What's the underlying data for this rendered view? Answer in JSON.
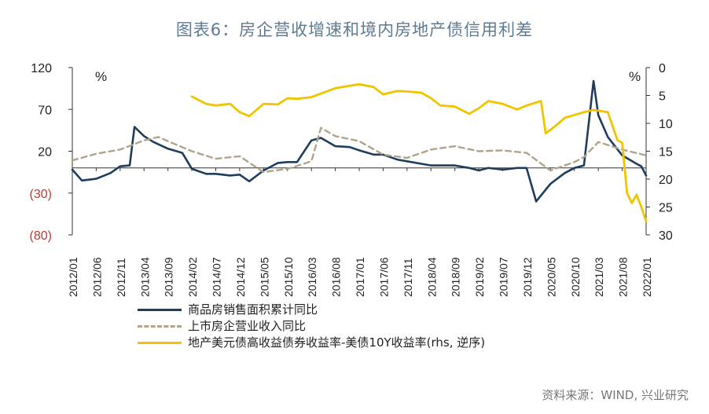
{
  "title": "图表6：房企营收增速和境内房地产债信用利差",
  "source": "资料来源：WIND, 兴业研究",
  "colors": {
    "sales": "#1f3d5c",
    "revenue": "#b0a48a",
    "spread": "#f2c400",
    "negative_tick": "#c0392b"
  },
  "chart_data": {
    "type": "line",
    "x_ticks": [
      "2012/01",
      "2012/06",
      "2012/11",
      "2013/04",
      "2013/09",
      "2014/02",
      "2014/07",
      "2014/12",
      "2015/05",
      "2015/10",
      "2016/03",
      "2016/08",
      "2017/01",
      "2017/06",
      "2017/11",
      "2018/04",
      "2018/09",
      "2019/02",
      "2019/07",
      "2019/12",
      "2020/05",
      "2020/10",
      "2021/03",
      "2021/08",
      "2022/01"
    ],
    "y_left": {
      "unit": "%",
      "ylim": [
        -80,
        120
      ],
      "ticks": [
        120,
        70,
        20,
        -30,
        -80
      ],
      "tick_labels": [
        "120",
        "70",
        "20",
        "(30)",
        "(80)"
      ]
    },
    "y_right": {
      "unit": "%",
      "ylim": [
        0,
        30
      ],
      "reversed": true,
      "ticks": [
        0,
        5,
        10,
        15,
        20,
        25,
        30
      ],
      "tick_labels": [
        "0",
        "5",
        "10",
        "15",
        "20",
        "25",
        "30"
      ]
    },
    "grid": false,
    "legend_position": "bottom-left",
    "series": [
      {
        "name": "商品房销售面积累计同比",
        "axis": "left",
        "style": "solid",
        "points": [
          [
            "2012/01",
            -2
          ],
          [
            "2012/03",
            -15
          ],
          [
            "2012/06",
            -13
          ],
          [
            "2012/09",
            -6
          ],
          [
            "2012/11",
            2
          ],
          [
            "2013/01",
            3
          ],
          [
            "2013/02",
            49
          ],
          [
            "2013/04",
            38
          ],
          [
            "2013/06",
            31
          ],
          [
            "2013/09",
            23
          ],
          [
            "2013/12",
            18
          ],
          [
            "2014/02",
            -1
          ],
          [
            "2014/05",
            -7
          ],
          [
            "2014/07",
            -7
          ],
          [
            "2014/10",
            -9
          ],
          [
            "2014/12",
            -8
          ],
          [
            "2015/02",
            -16
          ],
          [
            "2015/05",
            -3
          ],
          [
            "2015/08",
            6
          ],
          [
            "2015/10",
            7
          ],
          [
            "2015/12",
            7
          ],
          [
            "2016/03",
            33
          ],
          [
            "2016/05",
            36
          ],
          [
            "2016/08",
            26
          ],
          [
            "2016/11",
            25
          ],
          [
            "2017/01",
            21
          ],
          [
            "2017/04",
            16
          ],
          [
            "2017/06",
            16
          ],
          [
            "2017/09",
            10
          ],
          [
            "2017/11",
            8
          ],
          [
            "2018/02",
            5
          ],
          [
            "2018/04",
            3
          ],
          [
            "2018/06",
            3
          ],
          [
            "2018/09",
            3
          ],
          [
            "2018/12",
            0
          ],
          [
            "2019/02",
            -3
          ],
          [
            "2019/04",
            0
          ],
          [
            "2019/07",
            -2
          ],
          [
            "2019/10",
            0
          ],
          [
            "2019/12",
            0
          ],
          [
            "2020/02",
            -40
          ],
          [
            "2020/05",
            -19
          ],
          [
            "2020/08",
            -6
          ],
          [
            "2020/10",
            0
          ],
          [
            "2020/12",
            3
          ],
          [
            "2021/02",
            104
          ],
          [
            "2021/03",
            63
          ],
          [
            "2021/05",
            37
          ],
          [
            "2021/08",
            15
          ],
          [
            "2021/11",
            5
          ],
          [
            "2021/12",
            2
          ],
          [
            "2022/01",
            -9
          ]
        ]
      },
      {
        "name": "上市房企营业收入同比",
        "axis": "left",
        "style": "dashed",
        "points": [
          [
            "2012/01",
            9
          ],
          [
            "2012/06",
            17
          ],
          [
            "2012/11",
            22
          ],
          [
            "2013/04",
            33
          ],
          [
            "2013/07",
            37
          ],
          [
            "2013/09",
            32
          ],
          [
            "2014/02",
            20
          ],
          [
            "2014/07",
            11
          ],
          [
            "2014/12",
            14
          ],
          [
            "2015/05",
            -5
          ],
          [
            "2015/10",
            -1
          ],
          [
            "2016/03",
            8
          ],
          [
            "2016/05",
            48
          ],
          [
            "2016/08",
            38
          ],
          [
            "2017/01",
            32
          ],
          [
            "2017/06",
            16
          ],
          [
            "2017/11",
            12
          ],
          [
            "2018/04",
            22
          ],
          [
            "2018/09",
            26
          ],
          [
            "2019/02",
            20
          ],
          [
            "2019/07",
            21
          ],
          [
            "2019/12",
            18
          ],
          [
            "2020/05",
            -3
          ],
          [
            "2020/10",
            7
          ],
          [
            "2020/12",
            13
          ],
          [
            "2021/03",
            31
          ],
          [
            "2021/08",
            22
          ],
          [
            "2022/01",
            15
          ]
        ]
      },
      {
        "name": "地产美元债高收益债券收益率-美债10Y收益率(rhs, 逆序)",
        "axis": "right",
        "style": "solid",
        "points": [
          [
            "2014/02",
            5.2
          ],
          [
            "2014/05",
            6.5
          ],
          [
            "2014/07",
            6.8
          ],
          [
            "2014/10",
            6.5
          ],
          [
            "2014/12",
            8.0
          ],
          [
            "2015/02",
            8.7
          ],
          [
            "2015/05",
            6.5
          ],
          [
            "2015/08",
            6.6
          ],
          [
            "2015/10",
            5.5
          ],
          [
            "2015/12",
            5.6
          ],
          [
            "2016/03",
            5.3
          ],
          [
            "2016/08",
            3.7
          ],
          [
            "2017/01",
            3.0
          ],
          [
            "2017/04",
            3.5
          ],
          [
            "2017/06",
            4.8
          ],
          [
            "2017/09",
            4.2
          ],
          [
            "2017/11",
            4.3
          ],
          [
            "2018/02",
            4.5
          ],
          [
            "2018/04",
            5.5
          ],
          [
            "2018/06",
            6.8
          ],
          [
            "2018/09",
            7.0
          ],
          [
            "2018/12",
            8.3
          ],
          [
            "2019/02",
            7.3
          ],
          [
            "2019/04",
            6.0
          ],
          [
            "2019/07",
            6.5
          ],
          [
            "2019/10",
            7.5
          ],
          [
            "2019/12",
            6.8
          ],
          [
            "2020/03",
            6.0
          ],
          [
            "2020/04",
            11.8
          ],
          [
            "2020/06",
            10.5
          ],
          [
            "2020/08",
            9.0
          ],
          [
            "2020/10",
            8.5
          ],
          [
            "2020/12",
            8.0
          ],
          [
            "2021/02",
            7.6
          ],
          [
            "2021/05",
            8.0
          ],
          [
            "2021/07",
            13.0
          ],
          [
            "2021/08",
            13.5
          ],
          [
            "2021/09",
            22.5
          ],
          [
            "2021/10",
            24.3
          ],
          [
            "2021/11",
            22.8
          ],
          [
            "2021/12",
            25.0
          ],
          [
            "2022/01",
            27.5
          ]
        ]
      }
    ]
  }
}
